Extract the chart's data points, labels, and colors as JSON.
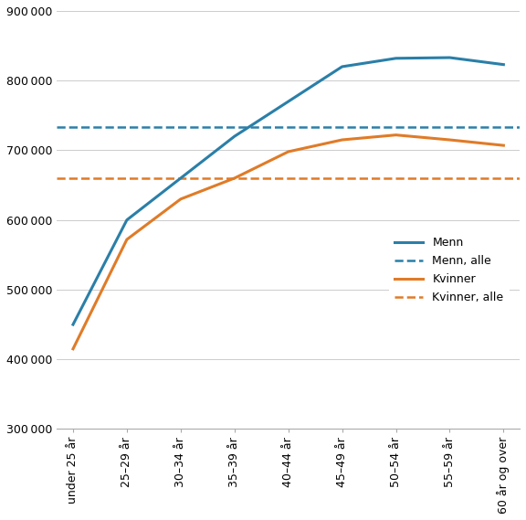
{
  "categories": [
    "under 25 år",
    "25–29 år",
    "30–34 år",
    "35–39 år",
    "40–44 år",
    "45–49 år",
    "50–54 år",
    "55–59 år",
    "60 år og over"
  ],
  "menn": [
    450000,
    600000,
    660000,
    720000,
    770000,
    820000,
    832000,
    833000,
    823000
  ],
  "kvinner": [
    415000,
    572000,
    630000,
    660000,
    698000,
    715000,
    722000,
    715000,
    707000
  ],
  "menn_alle": 733000,
  "kvinner_alle": 660000,
  "menn_color": "#2a7fa8",
  "kvinner_color": "#e07b27",
  "ylim": [
    300000,
    900000
  ],
  "yticks": [
    300000,
    400000,
    500000,
    600000,
    700000,
    800000,
    900000
  ],
  "legend_labels": [
    "Menn",
    "Menn, alle",
    "Kvinner",
    "Kvinner, alle"
  ],
  "background_color": "#ffffff",
  "grid_color": "#cccccc"
}
